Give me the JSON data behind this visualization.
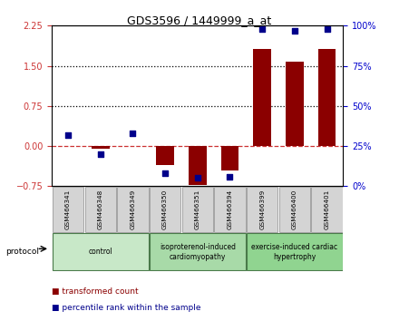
{
  "title": "GDS3596 / 1449999_a_at",
  "samples": [
    "GSM466341",
    "GSM466348",
    "GSM466349",
    "GSM466350",
    "GSM466351",
    "GSM466394",
    "GSM466399",
    "GSM466400",
    "GSM466401"
  ],
  "transformed_count": [
    0.0,
    -0.05,
    0.0,
    -0.35,
    -0.72,
    -0.45,
    1.82,
    1.58,
    1.82
  ],
  "percentile_rank": [
    32,
    20,
    33,
    8,
    5,
    6,
    98,
    97,
    98
  ],
  "left_ylim": [
    -0.75,
    2.25
  ],
  "right_ylim": [
    0,
    100
  ],
  "left_yticks": [
    -0.75,
    0.0,
    0.75,
    1.5,
    2.25
  ],
  "right_yticks": [
    0,
    25,
    50,
    75,
    100
  ],
  "right_yticklabels": [
    "0%",
    "25%",
    "50%",
    "75%",
    "100%"
  ],
  "hlines": [
    0.75,
    1.5
  ],
  "bar_color": "#8B0000",
  "dot_color": "#00008B",
  "zero_line_color": "#cc3333",
  "groups": [
    {
      "label": "control",
      "indices": [
        0,
        1,
        2
      ],
      "color": "#c8e8c8"
    },
    {
      "label": "isoproterenol-induced\ncardiomyopathy",
      "indices": [
        3,
        4,
        5
      ],
      "color": "#a8daa8"
    },
    {
      "label": "exercise-induced cardiac\nhypertrophy",
      "indices": [
        6,
        7,
        8
      ],
      "color": "#90d490"
    }
  ],
  "protocol_label": "protocol",
  "legend_red_label": "transformed count",
  "legend_blue_label": "percentile rank within the sample",
  "legend_red_color": "#8B0000",
  "legend_blue_color": "#00008B"
}
